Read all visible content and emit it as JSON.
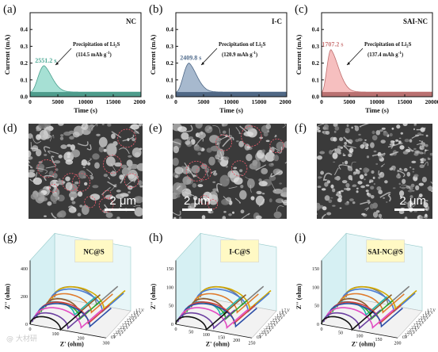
{
  "chart_data": [
    {
      "type": "area",
      "panel": "(a)",
      "title": "NC",
      "xlabel": "Time (s)",
      "ylabel": "Current (mA)",
      "xlim": [
        0,
        20000
      ],
      "ylim": [
        0,
        0.5
      ],
      "xticks": [
        "0",
        "5000",
        "10000",
        "15000",
        "20000"
      ],
      "yticks": [
        "0.0",
        "0.1",
        "0.2",
        "0.3",
        "0.4"
      ],
      "peak_time_label": "2551.2 s",
      "peak": {
        "x": 2551.2,
        "y": 0.185
      },
      "baseline": 0.028,
      "annotation": "Precipitation of Li",
      "annotation_sub": "2",
      "annotation_tail": "S",
      "capacity_label": "(114.5 mAh g",
      "capacity_sup": "-1",
      "capacity_tail": ")",
      "color": "#5cc7b0"
    },
    {
      "type": "area",
      "panel": "(b)",
      "title": "I-C",
      "xlabel": "Time (s)",
      "ylabel": "Current (mA)",
      "xlim": [
        0,
        20000
      ],
      "ylim": [
        0,
        0.5
      ],
      "xticks": [
        "0",
        "5000",
        "10000",
        "15000",
        "20000"
      ],
      "yticks": [
        "0.0",
        "0.1",
        "0.2",
        "0.3",
        "0.4"
      ],
      "peak_time_label": "2409.8 s",
      "peak": {
        "x": 2409.8,
        "y": 0.2
      },
      "baseline": 0.028,
      "annotation": "Precipitation of Li",
      "annotation_sub": "2",
      "annotation_tail": "S",
      "capacity_label": "(120.9 mAh g",
      "capacity_sup": "-1",
      "capacity_tail": ")",
      "color": "#5f7fa6"
    },
    {
      "type": "area",
      "panel": "(c)",
      "title": "SAI-NC",
      "xlabel": "Time (s)",
      "ylabel": "Current (mA)",
      "xlim": [
        0,
        20000
      ],
      "ylim": [
        0,
        0.5
      ],
      "xticks": [
        "0",
        "5000",
        "10000",
        "15000",
        "20000"
      ],
      "yticks": [
        "0.0",
        "0.1",
        "0.2",
        "0.3",
        "0.4"
      ],
      "peak_time_label": "1707.2 s",
      "peak": {
        "x": 1707.2,
        "y": 0.28
      },
      "baseline": 0.028,
      "annotation": "Precipitation of Li",
      "annotation_sub": "2",
      "annotation_tail": "S",
      "capacity_label": "(137.4 mAh g",
      "capacity_sup": "-1",
      "capacity_tail": ")",
      "color": "#ee8a8a"
    },
    {
      "type": "scatter",
      "panel": "(g)",
      "title": "NC@S",
      "xlabel": "Z' (ohm)",
      "ylabel": "Z'' (ohm)",
      "xticks": [
        "0",
        "100",
        "200",
        "300"
      ],
      "yticks": [
        "0",
        "200",
        "400"
      ],
      "series": [
        {
          "name": "1.7 V"
        },
        {
          "name": "1.8 V"
        },
        {
          "name": "1.9 V"
        },
        {
          "name": "2.0 V"
        },
        {
          "name": "2.1 V"
        },
        {
          "name": "2.2 V"
        },
        {
          "name": "2.3 V"
        },
        {
          "name": "2.4 V"
        },
        {
          "name": "2.5 V"
        },
        {
          "name": "2.6 V"
        },
        {
          "name": "2.7 V"
        },
        {
          "name": "OP"
        }
      ]
    },
    {
      "type": "scatter",
      "panel": "(h)",
      "title": "I-C@S",
      "xlabel": "Z' (ohm)",
      "ylabel": "Z'' (ohm)",
      "xticks": [
        "0",
        "50",
        "100",
        "150",
        "200",
        "250"
      ],
      "yticks": [
        "0",
        "50",
        "100",
        "150"
      ],
      "series": [
        {
          "name": "1.7 V"
        },
        {
          "name": "1.8 V"
        },
        {
          "name": "1.9 V"
        },
        {
          "name": "2.0 V"
        },
        {
          "name": "2.1 V"
        },
        {
          "name": "2.2 V"
        },
        {
          "name": "2.3 V"
        },
        {
          "name": "2.4 V"
        },
        {
          "name": "2.5 V"
        },
        {
          "name": "2.6 V"
        },
        {
          "name": "2.7 V"
        },
        {
          "name": "OP"
        }
      ]
    },
    {
      "type": "scatter",
      "panel": "(i)",
      "title": "SAI-NC@S",
      "xlabel": "Z' (ohm)",
      "ylabel": "Z'' (ohm)",
      "xticks": [
        "0",
        "50",
        "100",
        "150",
        "200"
      ],
      "yticks": [
        "0",
        "50",
        "100",
        "150"
      ],
      "series": [
        {
          "name": "1.7 V"
        },
        {
          "name": "1.8 V"
        },
        {
          "name": "1.9 V"
        },
        {
          "name": "2.0 V"
        },
        {
          "name": "2.1 V"
        },
        {
          "name": "2.2 V"
        },
        {
          "name": "2.3 V"
        },
        {
          "name": "2.4 V"
        },
        {
          "name": "2.5 V"
        },
        {
          "name": "2.6 V"
        },
        {
          "name": "2.7 V"
        },
        {
          "name": "OP"
        }
      ]
    }
  ],
  "sem_images": [
    {
      "panel": "(d)",
      "scale_bar": "2 μm"
    },
    {
      "panel": "(e)",
      "scale_bar": "2 μm"
    },
    {
      "panel": "(f)",
      "scale_bar": "2 μm"
    }
  ],
  "series_colors": [
    "#7f7f7f",
    "#d4a900",
    "#4a7bd4",
    "#e07b2c",
    "#8a5a2b",
    "#1fb5a8",
    "#2aa52a",
    "#d43f3f",
    "#2d4ea8",
    "#e34cc2",
    "#6b3fa0",
    "#111111"
  ],
  "watermark": "@ 大材研"
}
